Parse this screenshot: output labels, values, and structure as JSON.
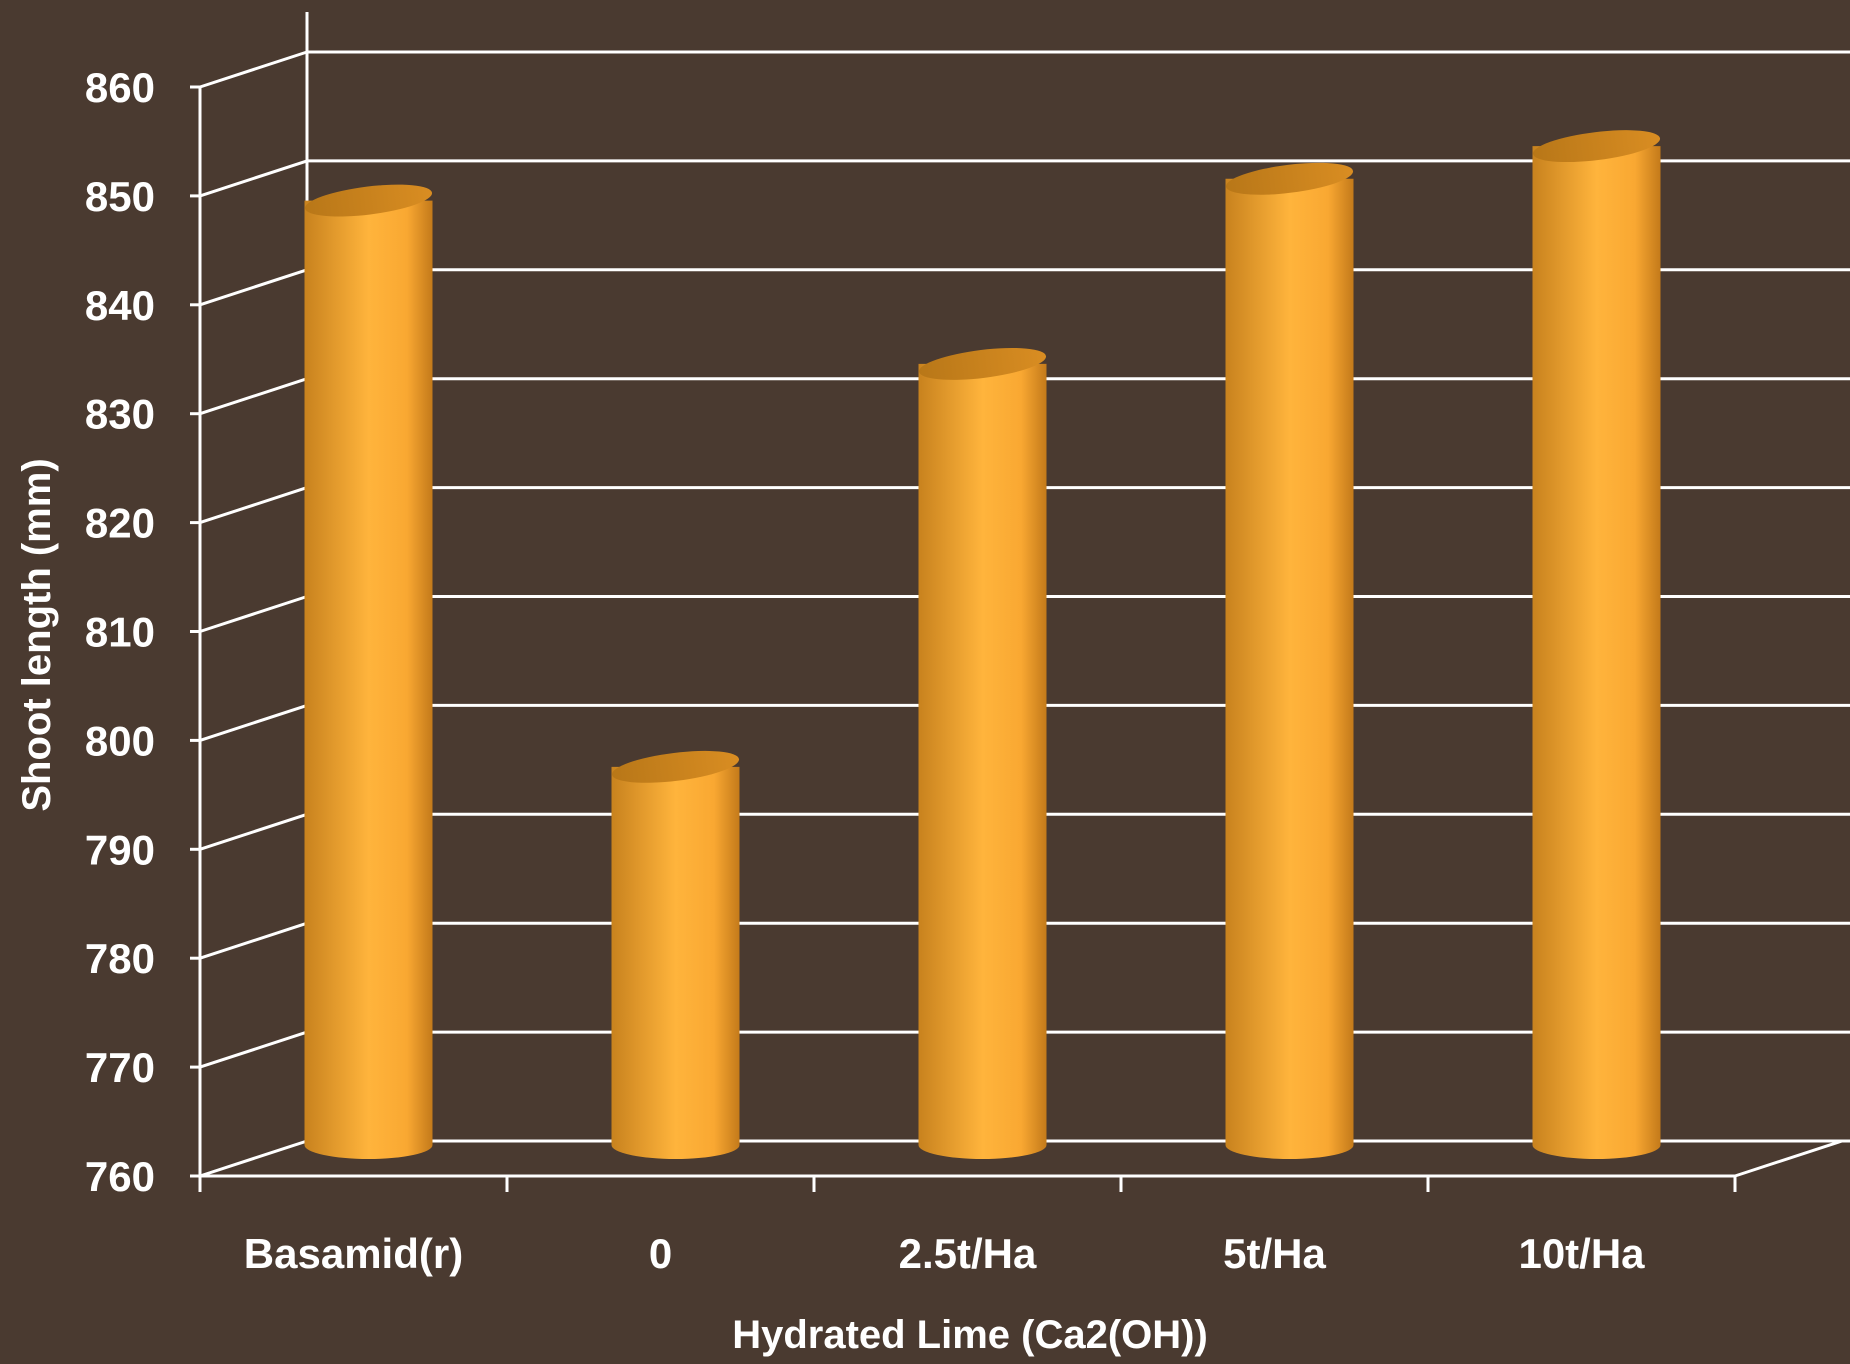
{
  "chart_data": {
    "type": "bar",
    "style": "3d-cylinder",
    "title": "",
    "xlabel": "Hydrated Lime (Ca2(OH))",
    "ylabel": "Shoot length (mm)",
    "categories": [
      "Basamid(r)",
      "0",
      "2.5t/Ha",
      "5t/Ha",
      "10t/Ha"
    ],
    "values": [
      847,
      795,
      832,
      849,
      852
    ],
    "ylim": [
      760,
      860
    ],
    "yticks": [
      "760",
      "770",
      "780",
      "790",
      "800",
      "810",
      "820",
      "830",
      "840",
      "850",
      "860"
    ],
    "grid": true,
    "legend": "none",
    "colors": {
      "background": "#4a3a30",
      "bar": "#f9a832",
      "bar_top": "#c8821e",
      "grid": "#ffffff"
    }
  }
}
